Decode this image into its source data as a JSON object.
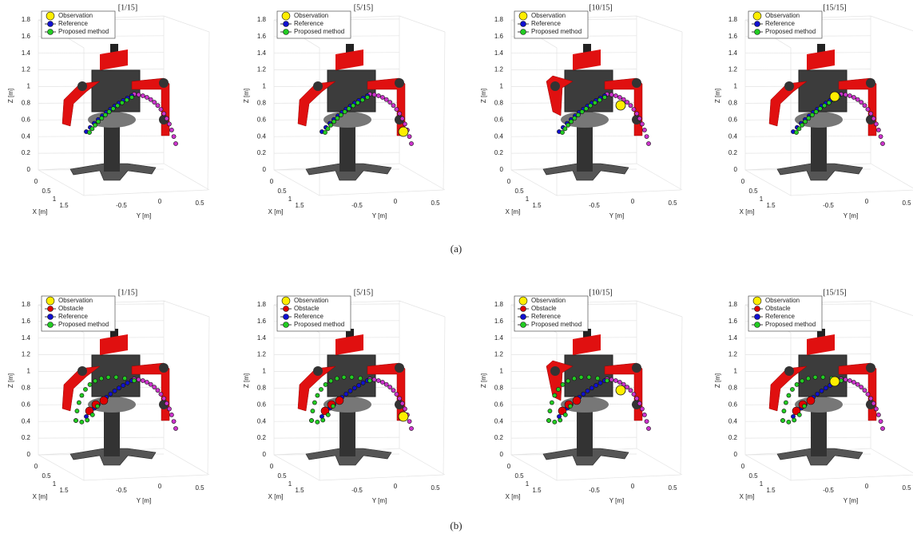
{
  "figure": {
    "rows": [
      {
        "caption": "(a)",
        "legend": [
          "Observation",
          "Reference",
          "Proposed method"
        ],
        "panels": [
          {
            "title": "[1/15]"
          },
          {
            "title": "[5/15]"
          },
          {
            "title": "[10/15]"
          },
          {
            "title": "[15/15]"
          }
        ]
      },
      {
        "caption": "(b)",
        "legend": [
          "Observation",
          "Obstacle",
          "Reference",
          "Proposed method"
        ],
        "panels": [
          {
            "title": "[1/15]"
          },
          {
            "title": "[5/15]"
          },
          {
            "title": "[10/15]"
          },
          {
            "title": "[15/15]"
          }
        ]
      }
    ],
    "axes": {
      "x_label": "X [m]",
      "y_label": "Y [m]",
      "z_label": "Z [m]",
      "x_ticks": [
        0,
        0.5,
        1,
        1.5
      ],
      "y_ticks": [
        -0.5,
        0,
        0.5
      ],
      "z_ticks": [
        0,
        0.2,
        0.4,
        0.6,
        0.8,
        1,
        1.2,
        1.4,
        1.6,
        1.8
      ]
    }
  }
}
